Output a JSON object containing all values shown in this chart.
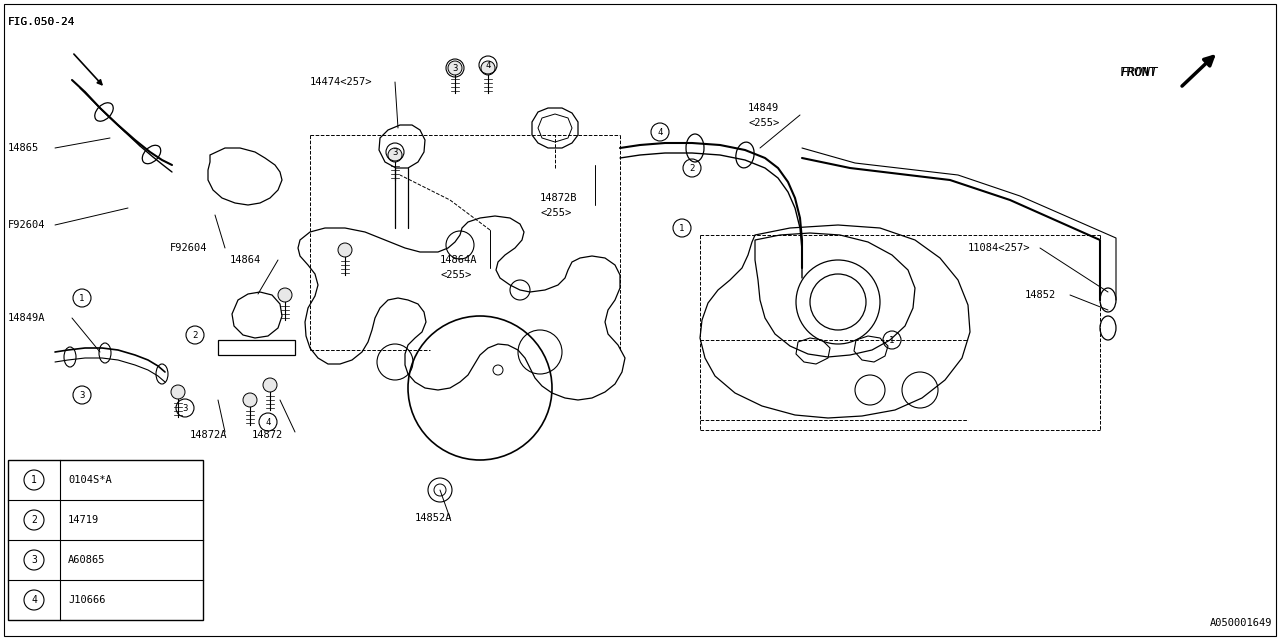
{
  "bg_color": "#ffffff",
  "line_color": "#000000",
  "diagram_id": "A050001649",
  "fig_w": 1280,
  "fig_h": 640,
  "legend": [
    {
      "num": "1",
      "code": "0104S*A"
    },
    {
      "num": "2",
      "code": "14719"
    },
    {
      "num": "3",
      "code": "A60865"
    },
    {
      "num": "4",
      "code": "J10666"
    }
  ]
}
